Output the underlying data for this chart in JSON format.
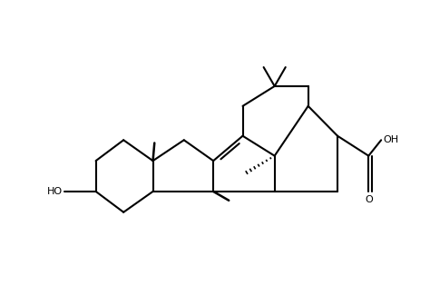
{
  "bg": "#ffffff",
  "lc": "#000000",
  "lw": 1.5,
  "lw_thick": 3.5,
  "fig_w": 4.74,
  "fig_h": 3.36,
  "dpi": 100,
  "xlim": [
    0,
    10
  ],
  "ylim": [
    0,
    7
  ]
}
